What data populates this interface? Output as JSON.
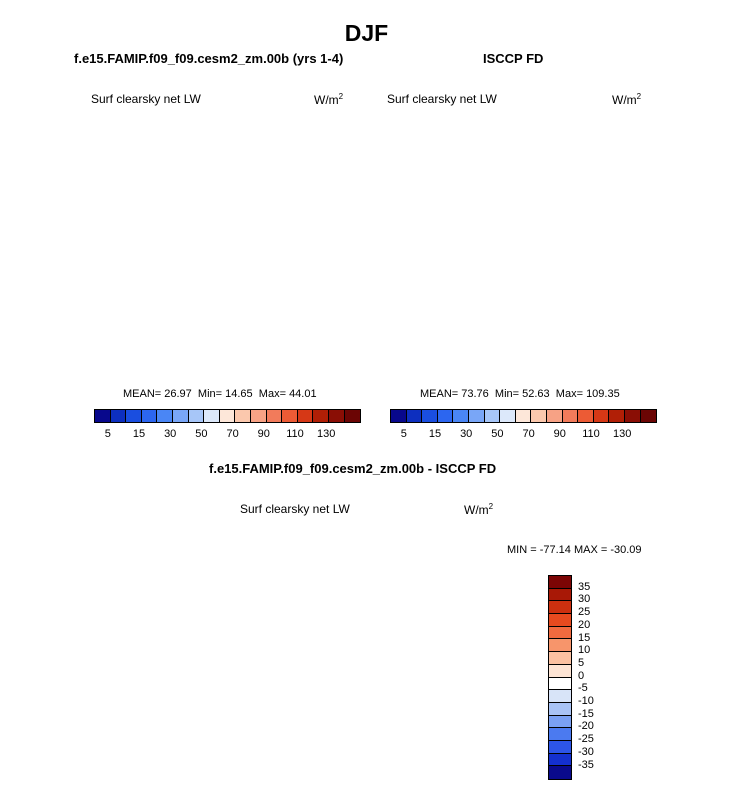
{
  "title": "DJF",
  "colors": {
    "blue_ramp": [
      "#08088c",
      "#0d2fbf",
      "#1a4ee0",
      "#2c66f0",
      "#4a86f5",
      "#79a6f7",
      "#a7c6f8",
      "#dce8fa",
      "#fde7d9",
      "#fbc8ad",
      "#f7a285",
      "#f27b5b",
      "#ec5b35",
      "#d63816",
      "#b11f06",
      "#8a0e05",
      "#6b0504"
    ],
    "diff_ramp": [
      "#0a0a8c",
      "#1430cf",
      "#2d55e8",
      "#4b7af0",
      "#7aa0f3",
      "#a9c3f5",
      "#d8e4f8",
      "#ffffff",
      "#fde4d4",
      "#fbc1a1",
      "#f7956b",
      "#f16a3f",
      "#e74a1f",
      "#cc300f",
      "#a81806",
      "#7c0505"
    ]
  },
  "chart_data": [
    {
      "type": "heatmap",
      "projection": "north-polar-stereographic",
      "title": "f.e15.FAMIP.f09_f09.cesm2_zm.00b (yrs 1-4)",
      "left_label": "Surf clearsky net LW",
      "units": "W/m",
      "units_exp": "2",
      "stats": {
        "mean_label": "MEAN= ",
        "mean": "26.97",
        "min_label": "Min= ",
        "min": "14.65",
        "max_label": "Max= ",
        "max": "44.01"
      },
      "colorbar_ticks": [
        "5",
        "15",
        "30",
        "50",
        "70",
        "90",
        "110",
        "130"
      ],
      "colorbar_levels": [
        5,
        10,
        15,
        20,
        30,
        40,
        50,
        60,
        70,
        80,
        90,
        100,
        110,
        120,
        130,
        140
      ]
    },
    {
      "type": "heatmap",
      "projection": "north-polar-stereographic",
      "title": "ISCCP FD",
      "left_label": "Surf clearsky net LW",
      "units": "W/m",
      "units_exp": "2",
      "stats": {
        "mean_label": "MEAN= ",
        "mean": "73.76",
        "min_label": "Min= ",
        "min": "52.63",
        "max_label": "Max= ",
        "max": "109.35"
      },
      "colorbar_ticks": [
        "5",
        "15",
        "30",
        "50",
        "70",
        "90",
        "110",
        "130"
      ],
      "colorbar_levels": [
        5,
        10,
        15,
        20,
        30,
        40,
        50,
        60,
        70,
        80,
        90,
        100,
        110,
        120,
        130,
        140
      ]
    },
    {
      "type": "heatmap",
      "projection": "north-polar-stereographic",
      "title": "f.e15.FAMIP.f09_f09.cesm2_zm.00b - ISCCP FD",
      "left_label": "Surf clearsky net LW",
      "units": "W/m",
      "units_exp": "2",
      "stats": {
        "text": "MIN = -77.14 MAX = -30.09"
      },
      "colorbar_ticks": [
        "35",
        "30",
        "25",
        "20",
        "15",
        "10",
        "5",
        "0",
        "-5",
        "-10",
        "-15",
        "-20",
        "-25",
        "-30",
        "-35"
      ]
    }
  ]
}
